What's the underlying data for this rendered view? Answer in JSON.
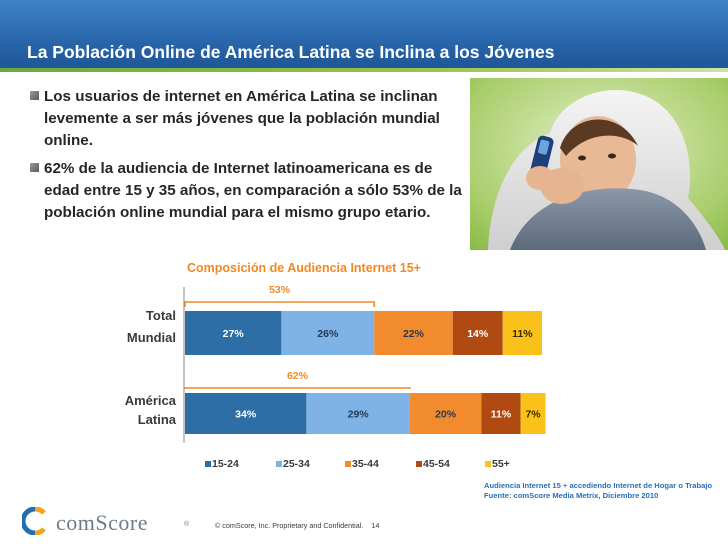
{
  "slide": {
    "title": "La Población Online de América Latina se Inclina a los Jóvenes"
  },
  "bullets": [
    {
      "text": "Los usuarios de internet en América Latina se inclinan levemente a ser más jóvenes que la población mundial online."
    },
    {
      "text": "62% de la audiencia de Internet latinoamericana es de edad entre 15 y 35 años, en comparación a sólo 53% de la población online mundial para el mismo grupo etario."
    }
  ],
  "chart_data": {
    "type": "bar",
    "orientation": "horizontal-stacked-100",
    "title": "Composición de Audiencia Internet 15+",
    "categories": [
      "Total Mundial",
      "América Latina"
    ],
    "series": [
      {
        "name": "15-24",
        "color": "#2e6ea6",
        "values": [
          27,
          34
        ]
      },
      {
        "name": "25-34",
        "color": "#7fb2e5",
        "values": [
          26,
          29
        ]
      },
      {
        "name": "35-44",
        "color": "#f28a2e",
        "values": [
          22,
          20
        ]
      },
      {
        "name": "45-54",
        "color": "#b04a12",
        "values": [
          14,
          11
        ]
      },
      {
        "name": "55+",
        "color": "#f9c11a",
        "values": [
          11,
          7
        ]
      }
    ],
    "labels": [
      [
        "27%",
        "26%",
        "22%",
        "14%",
        "11%"
      ],
      [
        "34%",
        "29%",
        "20%",
        "11%",
        "7%"
      ]
    ],
    "brackets": [
      "53%",
      "62%"
    ],
    "xlim": [
      0,
      100
    ],
    "legend": "bottom"
  },
  "source": {
    "line1": "Audiencia Internet 15 + accediendo Internet de Hogar o Trabajo",
    "line2": "Fuente:  comScore Media Metrix, Diciembre 2010"
  },
  "logo": {
    "text": "comScore",
    "tm": "®"
  },
  "footer": {
    "text": "© comScore, Inc.  Proprietary and Confidential.",
    "page": "14"
  }
}
